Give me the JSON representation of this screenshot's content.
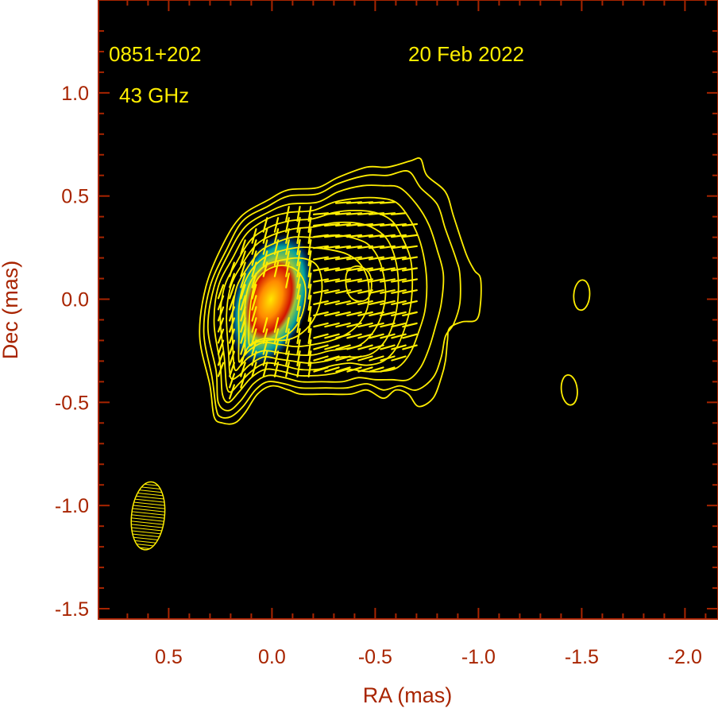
{
  "chart_data": {
    "type": "contour",
    "source_label": "0851+202",
    "frequency_label": "43 GHz",
    "date_label": "20 Feb 2022",
    "xlabel": "RA (mas)",
    "ylabel": "Dec (mas)",
    "xlim": [
      0.84,
      -2.16
    ],
    "ylim": [
      -1.55,
      1.45
    ],
    "x_reversed": true,
    "x_ticks": [
      0.5,
      0.0,
      -0.5,
      -1.0,
      -1.5,
      -2.0
    ],
    "x_tick_labels": [
      "0.5",
      "0.0",
      "-0.5",
      "-1.0",
      "-1.5",
      "-2.0"
    ],
    "y_ticks": [
      1.0,
      0.5,
      0.0,
      -0.5,
      -1.0,
      -1.5
    ],
    "y_tick_labels": [
      "1.0",
      "0.5",
      "0.0",
      "-0.5",
      "-1.0",
      "-1.5"
    ],
    "background": "#000000",
    "contour_color": "#ffee00",
    "axis_color": "#a82400",
    "colormap": [
      "#003cc8",
      "#00a0a0",
      "#9ac83c",
      "#ffd200",
      "#ff5a00",
      "#d21400"
    ],
    "core": {
      "x": 0.0,
      "y": 0.0
    },
    "knot": {
      "x": -0.42,
      "y": 0.08
    },
    "beam": {
      "x": 0.6,
      "y": -1.05,
      "major_mas": 0.33,
      "minor_mas": 0.16,
      "pa_deg": -6
    },
    "small_components": [
      {
        "x": -1.5,
        "y": 0.02
      },
      {
        "x": -1.44,
        "y": -0.44
      }
    ],
    "contours": [
      [
        [
          0.28,
          -0.57
        ],
        [
          0.3,
          -0.42
        ],
        [
          0.35,
          -0.18
        ],
        [
          0.32,
          0.06
        ],
        [
          0.24,
          0.26
        ],
        [
          0.15,
          0.4
        ],
        [
          0.02,
          0.48
        ],
        [
          -0.08,
          0.53
        ],
        [
          -0.22,
          0.54
        ],
        [
          -0.32,
          0.59
        ],
        [
          -0.46,
          0.64
        ],
        [
          -0.56,
          0.64
        ],
        [
          -0.67,
          0.67
        ],
        [
          -0.72,
          0.68
        ],
        [
          -0.75,
          0.6
        ],
        [
          -0.84,
          0.52
        ],
        [
          -0.88,
          0.4
        ],
        [
          -0.94,
          0.22
        ],
        [
          -0.98,
          0.14
        ],
        [
          -1.01,
          0.1
        ],
        [
          -1.01,
          -0.02
        ],
        [
          -0.99,
          -0.1
        ],
        [
          -0.92,
          -0.11
        ],
        [
          -0.86,
          -0.14
        ],
        [
          -0.85,
          -0.2
        ],
        [
          -0.84,
          -0.3
        ],
        [
          -0.82,
          -0.38
        ],
        [
          -0.78,
          -0.48
        ],
        [
          -0.71,
          -0.52
        ],
        [
          -0.66,
          -0.46
        ],
        [
          -0.6,
          -0.44
        ],
        [
          -0.54,
          -0.48
        ],
        [
          -0.46,
          -0.44
        ],
        [
          -0.38,
          -0.46
        ],
        [
          -0.26,
          -0.46
        ],
        [
          -0.14,
          -0.46
        ],
        [
          -0.08,
          -0.44
        ],
        [
          0.0,
          -0.42
        ],
        [
          0.07,
          -0.46
        ],
        [
          0.13,
          -0.55
        ],
        [
          0.18,
          -0.6
        ],
        [
          0.24,
          -0.6
        ]
      ],
      [
        [
          0.27,
          -0.53
        ],
        [
          0.29,
          -0.38
        ],
        [
          0.33,
          -0.16
        ],
        [
          0.3,
          0.06
        ],
        [
          0.22,
          0.24
        ],
        [
          0.14,
          0.38
        ],
        [
          0.02,
          0.45
        ],
        [
          -0.08,
          0.5
        ],
        [
          -0.22,
          0.51
        ],
        [
          -0.32,
          0.56
        ],
        [
          -0.46,
          0.6
        ],
        [
          -0.56,
          0.6
        ],
        [
          -0.66,
          0.62
        ],
        [
          -0.72,
          0.54
        ],
        [
          -0.8,
          0.46
        ],
        [
          -0.84,
          0.34
        ],
        [
          -0.89,
          0.2
        ],
        [
          -0.91,
          0.12
        ],
        [
          -0.91,
          -0.02
        ],
        [
          -0.88,
          -0.12
        ],
        [
          -0.84,
          -0.18
        ],
        [
          -0.82,
          -0.28
        ],
        [
          -0.78,
          -0.38
        ],
        [
          -0.7,
          -0.44
        ],
        [
          -0.62,
          -0.42
        ],
        [
          -0.54,
          -0.44
        ],
        [
          -0.46,
          -0.41
        ],
        [
          -0.36,
          -0.43
        ],
        [
          -0.26,
          -0.43
        ],
        [
          -0.14,
          -0.43
        ],
        [
          -0.06,
          -0.41
        ],
        [
          0.02,
          -0.4
        ],
        [
          0.08,
          -0.44
        ],
        [
          0.14,
          -0.52
        ],
        [
          0.2,
          -0.57
        ],
        [
          0.25,
          -0.57
        ]
      ],
      [
        [
          0.26,
          -0.5
        ],
        [
          0.27,
          -0.35
        ],
        [
          0.31,
          -0.14
        ],
        [
          0.28,
          0.06
        ],
        [
          0.21,
          0.22
        ],
        [
          0.13,
          0.35
        ],
        [
          0.02,
          0.42
        ],
        [
          -0.08,
          0.46
        ],
        [
          -0.22,
          0.47
        ],
        [
          -0.32,
          0.52
        ],
        [
          -0.44,
          0.55
        ],
        [
          -0.54,
          0.55
        ],
        [
          -0.62,
          0.54
        ],
        [
          -0.7,
          0.46
        ],
        [
          -0.76,
          0.36
        ],
        [
          -0.8,
          0.24
        ],
        [
          -0.83,
          0.12
        ],
        [
          -0.82,
          -0.02
        ],
        [
          -0.79,
          -0.14
        ],
        [
          -0.76,
          -0.24
        ],
        [
          -0.72,
          -0.33
        ],
        [
          -0.66,
          -0.39
        ],
        [
          -0.58,
          -0.39
        ],
        [
          -0.5,
          -0.39
        ],
        [
          -0.42,
          -0.38
        ],
        [
          -0.34,
          -0.4
        ],
        [
          -0.24,
          -0.4
        ],
        [
          -0.14,
          -0.4
        ],
        [
          -0.06,
          -0.38
        ],
        [
          0.02,
          -0.37
        ],
        [
          0.09,
          -0.41
        ],
        [
          0.15,
          -0.49
        ],
        [
          0.21,
          -0.54
        ]
      ],
      [
        [
          0.24,
          -0.46
        ],
        [
          0.25,
          -0.32
        ],
        [
          0.28,
          -0.12
        ],
        [
          0.26,
          0.06
        ],
        [
          0.19,
          0.2
        ],
        [
          0.12,
          0.32
        ],
        [
          0.02,
          0.39
        ],
        [
          -0.08,
          0.42
        ],
        [
          -0.2,
          0.43
        ],
        [
          -0.3,
          0.47
        ],
        [
          -0.42,
          0.49
        ],
        [
          -0.52,
          0.49
        ],
        [
          -0.6,
          0.47
        ],
        [
          -0.66,
          0.4
        ],
        [
          -0.71,
          0.3
        ],
        [
          -0.74,
          0.18
        ],
        [
          -0.75,
          0.06
        ],
        [
          -0.74,
          -0.06
        ],
        [
          -0.71,
          -0.16
        ],
        [
          -0.67,
          -0.26
        ],
        [
          -0.61,
          -0.33
        ],
        [
          -0.53,
          -0.35
        ],
        [
          -0.45,
          -0.35
        ],
        [
          -0.37,
          -0.34
        ],
        [
          -0.3,
          -0.36
        ],
        [
          -0.22,
          -0.37
        ],
        [
          -0.13,
          -0.37
        ],
        [
          -0.05,
          -0.35
        ],
        [
          0.03,
          -0.34
        ],
        [
          0.1,
          -0.38
        ],
        [
          0.16,
          -0.45
        ],
        [
          0.21,
          -0.5
        ]
      ],
      [
        [
          0.22,
          -0.42
        ],
        [
          0.23,
          -0.29
        ],
        [
          0.25,
          -0.1
        ],
        [
          0.23,
          0.06
        ],
        [
          0.17,
          0.18
        ],
        [
          0.1,
          0.29
        ],
        [
          0.01,
          0.35
        ],
        [
          -0.09,
          0.38
        ],
        [
          -0.2,
          0.39
        ],
        [
          -0.3,
          0.42
        ],
        [
          -0.4,
          0.43
        ],
        [
          -0.5,
          0.42
        ],
        [
          -0.58,
          0.38
        ],
        [
          -0.63,
          0.3
        ],
        [
          -0.67,
          0.2
        ],
        [
          -0.68,
          0.08
        ],
        [
          -0.67,
          -0.04
        ],
        [
          -0.64,
          -0.15
        ],
        [
          -0.6,
          -0.24
        ],
        [
          -0.54,
          -0.3
        ],
        [
          -0.46,
          -0.32
        ],
        [
          -0.38,
          -0.31
        ],
        [
          -0.3,
          -0.32
        ],
        [
          -0.22,
          -0.34
        ],
        [
          -0.13,
          -0.34
        ],
        [
          -0.05,
          -0.32
        ],
        [
          0.03,
          -0.31
        ],
        [
          0.1,
          -0.35
        ],
        [
          0.16,
          -0.41
        ],
        [
          0.2,
          -0.45
        ]
      ],
      [
        [
          0.2,
          -0.38
        ],
        [
          0.21,
          -0.26
        ],
        [
          0.22,
          -0.08
        ],
        [
          0.2,
          0.06
        ],
        [
          0.15,
          0.16
        ],
        [
          0.08,
          0.26
        ],
        [
          0.0,
          0.31
        ],
        [
          -0.1,
          0.34
        ],
        [
          -0.2,
          0.35
        ],
        [
          -0.3,
          0.37
        ],
        [
          -0.4,
          0.37
        ],
        [
          -0.48,
          0.35
        ],
        [
          -0.55,
          0.3
        ],
        [
          -0.59,
          0.22
        ],
        [
          -0.61,
          0.12
        ],
        [
          -0.61,
          0.0
        ],
        [
          -0.59,
          -0.11
        ],
        [
          -0.55,
          -0.2
        ],
        [
          -0.49,
          -0.26
        ],
        [
          -0.42,
          -0.28
        ],
        [
          -0.34,
          -0.28
        ],
        [
          -0.26,
          -0.3
        ],
        [
          -0.18,
          -0.31
        ],
        [
          -0.1,
          -0.3
        ],
        [
          -0.03,
          -0.29
        ],
        [
          0.04,
          -0.28
        ],
        [
          0.11,
          -0.32
        ],
        [
          0.16,
          -0.37
        ]
      ],
      [
        [
          0.18,
          -0.34
        ],
        [
          0.19,
          -0.22
        ],
        [
          0.19,
          -0.06
        ],
        [
          0.17,
          0.06
        ],
        [
          0.12,
          0.15
        ],
        [
          0.06,
          0.23
        ],
        [
          -0.01,
          0.27
        ],
        [
          -0.1,
          0.3
        ],
        [
          -0.2,
          0.3
        ],
        [
          -0.3,
          0.31
        ],
        [
          -0.38,
          0.3
        ],
        [
          -0.46,
          0.27
        ],
        [
          -0.51,
          0.21
        ],
        [
          -0.54,
          0.12
        ],
        [
          -0.55,
          0.02
        ],
        [
          -0.53,
          -0.08
        ],
        [
          -0.49,
          -0.16
        ],
        [
          -0.43,
          -0.22
        ],
        [
          -0.36,
          -0.24
        ],
        [
          -0.28,
          -0.25
        ],
        [
          -0.2,
          -0.27
        ],
        [
          -0.12,
          -0.27
        ],
        [
          -0.04,
          -0.26
        ],
        [
          0.04,
          -0.25
        ],
        [
          0.11,
          -0.28
        ],
        [
          0.15,
          -0.32
        ]
      ],
      [
        [
          0.16,
          -0.3
        ],
        [
          0.16,
          -0.18
        ],
        [
          0.16,
          -0.04
        ],
        [
          0.14,
          0.06
        ],
        [
          0.1,
          0.14
        ],
        [
          0.04,
          0.2
        ],
        [
          -0.03,
          0.23
        ],
        [
          -0.12,
          0.25
        ],
        [
          -0.2,
          0.25
        ],
        [
          -0.28,
          0.24
        ],
        [
          -0.36,
          0.22
        ],
        [
          -0.42,
          0.18
        ],
        [
          -0.46,
          0.11
        ],
        [
          -0.47,
          0.03
        ],
        [
          -0.46,
          -0.05
        ],
        [
          -0.42,
          -0.12
        ],
        [
          -0.36,
          -0.17
        ],
        [
          -0.29,
          -0.2
        ],
        [
          -0.2,
          -0.22
        ],
        [
          -0.12,
          -0.23
        ],
        [
          -0.04,
          -0.22
        ],
        [
          0.04,
          -0.21
        ],
        [
          0.1,
          -0.24
        ],
        [
          0.14,
          -0.28
        ]
      ],
      [
        [
          0.13,
          -0.26
        ],
        [
          0.13,
          -0.14
        ],
        [
          0.13,
          -0.02
        ],
        [
          0.11,
          0.07
        ],
        [
          0.07,
          0.13
        ],
        [
          0.02,
          0.17
        ],
        [
          -0.05,
          0.19
        ],
        [
          -0.12,
          0.2
        ],
        [
          -0.18,
          0.19
        ],
        [
          -0.22,
          0.16
        ],
        [
          -0.24,
          0.1
        ],
        [
          -0.24,
          0.02
        ],
        [
          -0.22,
          -0.06
        ],
        [
          -0.18,
          -0.13
        ],
        [
          -0.12,
          -0.18
        ],
        [
          -0.05,
          -0.2
        ],
        [
          0.03,
          -0.19
        ],
        [
          0.09,
          -0.21
        ],
        [
          0.12,
          -0.24
        ]
      ],
      [
        [
          0.11,
          -0.22
        ],
        [
          0.11,
          -0.1
        ],
        [
          0.1,
          0.0
        ],
        [
          0.08,
          0.08
        ],
        [
          0.04,
          0.13
        ],
        [
          -0.02,
          0.16
        ],
        [
          -0.08,
          0.16
        ],
        [
          -0.13,
          0.13
        ],
        [
          -0.16,
          0.07
        ],
        [
          -0.16,
          -0.01
        ],
        [
          -0.14,
          -0.09
        ],
        [
          -0.1,
          -0.15
        ],
        [
          -0.04,
          -0.19
        ],
        [
          0.03,
          -0.2
        ],
        [
          0.08,
          -0.21
        ]
      ],
      [
        [
          -0.36,
          0.12
        ],
        [
          -0.38,
          0.15
        ],
        [
          -0.42,
          0.16
        ],
        [
          -0.46,
          0.14
        ],
        [
          -0.48,
          0.1
        ],
        [
          -0.48,
          0.04
        ],
        [
          -0.46,
          0.0
        ],
        [
          -0.42,
          -0.01
        ],
        [
          -0.38,
          0.01
        ],
        [
          -0.36,
          0.06
        ]
      ]
    ]
  }
}
